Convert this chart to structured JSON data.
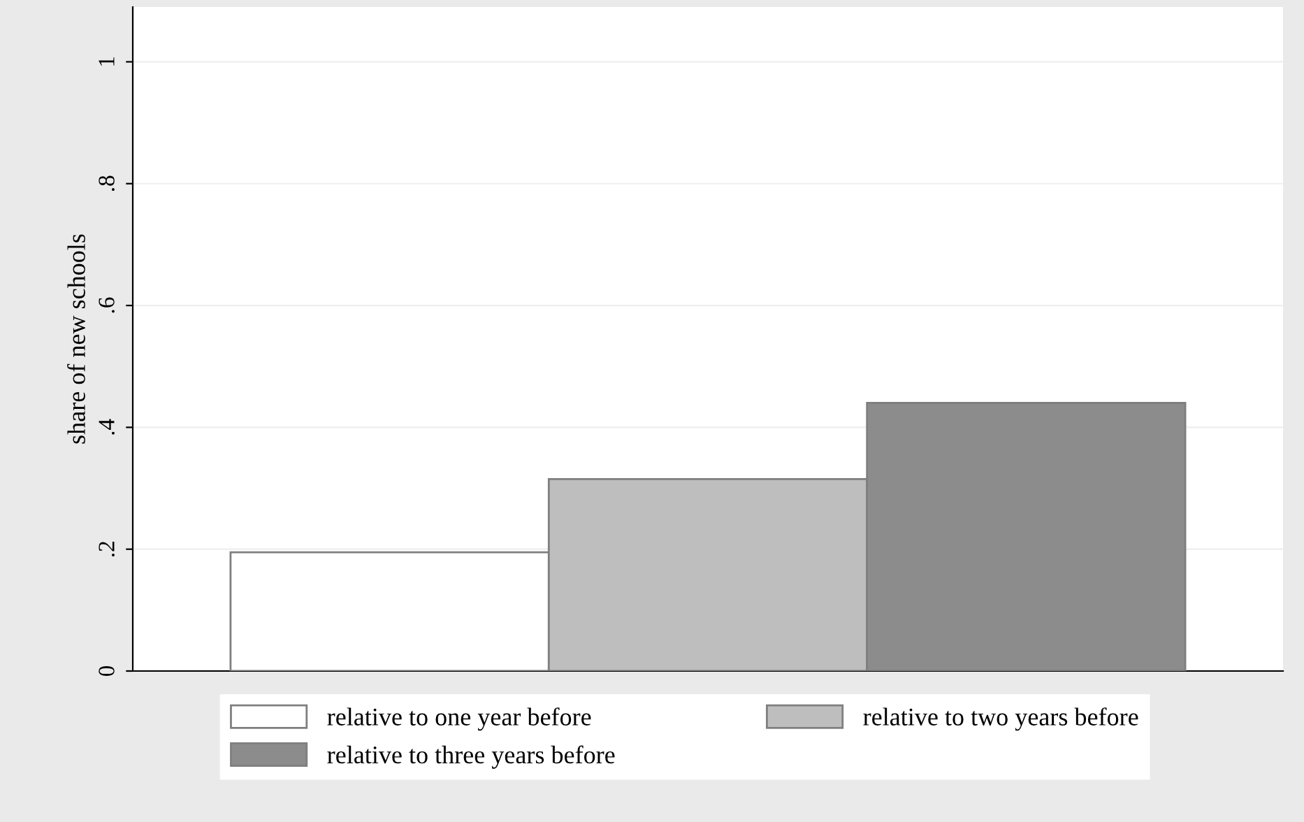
{
  "chart_data": {
    "type": "bar",
    "ylabel": "share of new schools",
    "categories": [
      null
    ],
    "series": [
      {
        "name": "relative to one year before",
        "color": "#ffffff",
        "values": [
          0.195
        ]
      },
      {
        "name": "relative to two years before",
        "color": "#bebebe",
        "values": [
          0.315
        ]
      },
      {
        "name": "relative to three years before",
        "color": "#8c8c8c",
        "values": [
          0.44
        ]
      }
    ],
    "ylim": [
      0,
      1.09
    ],
    "yticks": [
      0,
      {
        "value": 0.2,
        "label": ".2"
      },
      {
        "value": 0.4,
        "label": ".4"
      },
      {
        "value": 0.6,
        "label": ".6"
      },
      {
        "value": 0.8,
        "label": ".8"
      },
      1
    ],
    "grid": "y",
    "legend": "bottom"
  }
}
